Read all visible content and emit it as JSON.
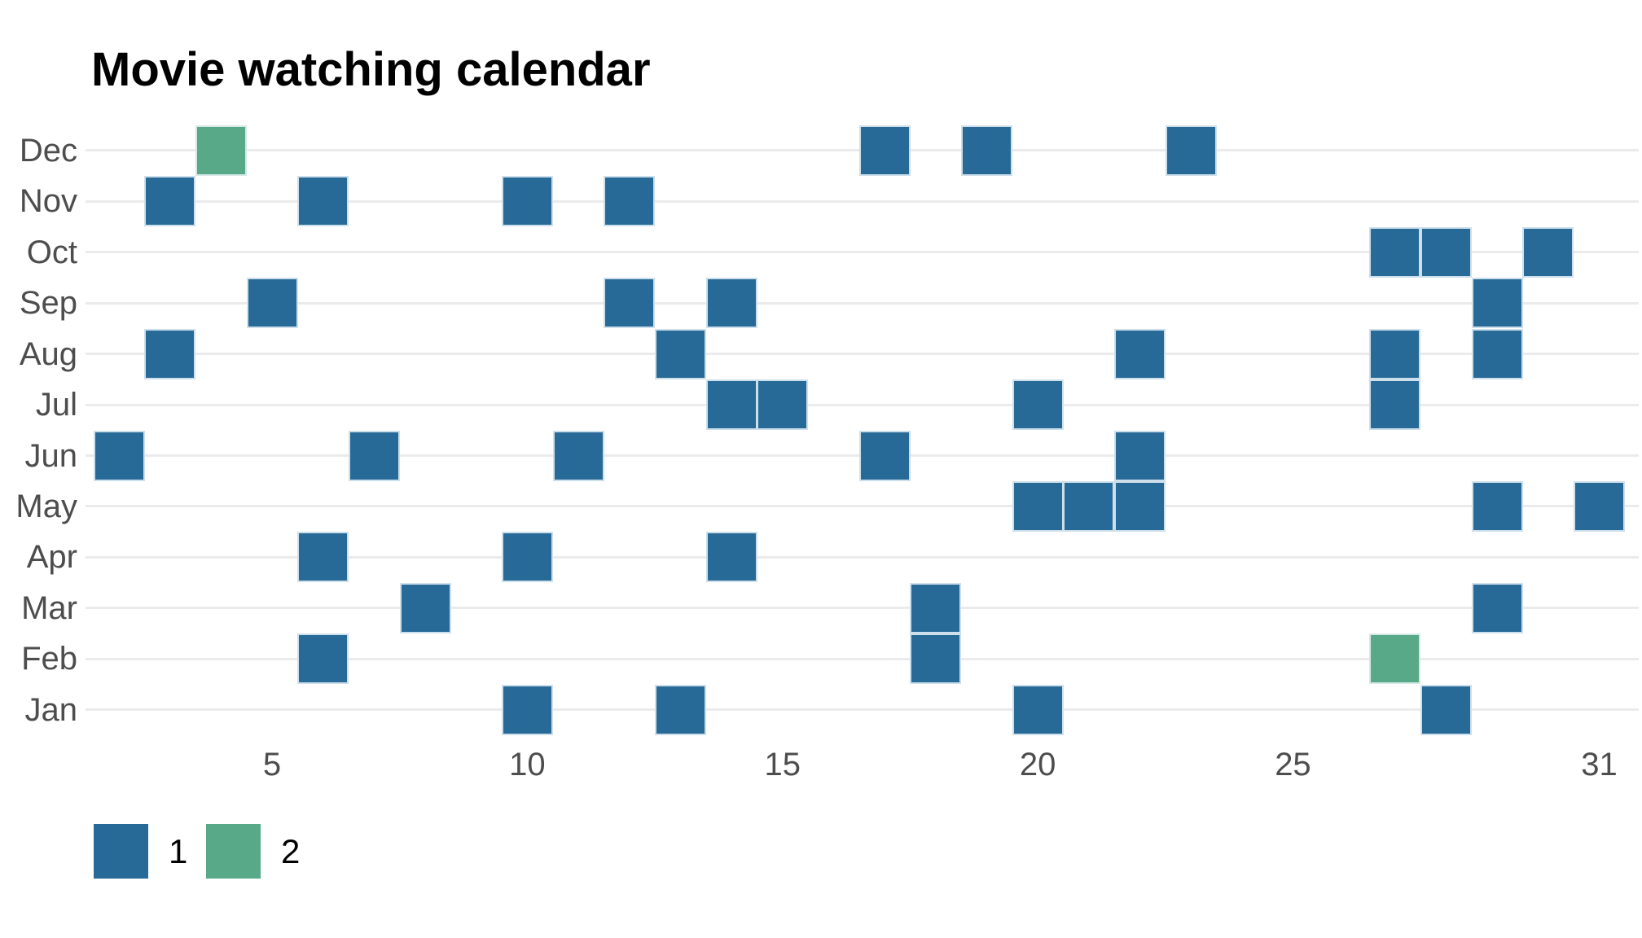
{
  "chart_data": {
    "type": "heatmap",
    "title": "Movie watching calendar",
    "xlabel": "",
    "ylabel": "",
    "x_axis": {
      "ticks": [
        5,
        10,
        15,
        20,
        25,
        31
      ],
      "range": [
        1,
        31
      ],
      "grid": false
    },
    "y_axis": {
      "categories_top_to_bottom": [
        "Dec",
        "Nov",
        "Oct",
        "Sep",
        "Aug",
        "Jul",
        "Jun",
        "May",
        "Apr",
        "Mar",
        "Feb",
        "Jan"
      ],
      "grid": true
    },
    "legend": [
      {
        "label": "1",
        "color": "#276a97"
      },
      {
        "label": "2",
        "color": "#58a987"
      }
    ],
    "legend_position": "bottom-left",
    "cells": [
      {
        "month": "Dec",
        "day": 4,
        "value": 2
      },
      {
        "month": "Dec",
        "day": 17,
        "value": 1
      },
      {
        "month": "Dec",
        "day": 19,
        "value": 1
      },
      {
        "month": "Dec",
        "day": 23,
        "value": 1
      },
      {
        "month": "Nov",
        "day": 3,
        "value": 1
      },
      {
        "month": "Nov",
        "day": 6,
        "value": 1
      },
      {
        "month": "Nov",
        "day": 10,
        "value": 1
      },
      {
        "month": "Nov",
        "day": 12,
        "value": 1
      },
      {
        "month": "Oct",
        "day": 27,
        "value": 1
      },
      {
        "month": "Oct",
        "day": 28,
        "value": 1
      },
      {
        "month": "Oct",
        "day": 30,
        "value": 1
      },
      {
        "month": "Sep",
        "day": 5,
        "value": 1
      },
      {
        "month": "Sep",
        "day": 12,
        "value": 1
      },
      {
        "month": "Sep",
        "day": 14,
        "value": 1
      },
      {
        "month": "Sep",
        "day": 29,
        "value": 1
      },
      {
        "month": "Aug",
        "day": 3,
        "value": 1
      },
      {
        "month": "Aug",
        "day": 13,
        "value": 1
      },
      {
        "month": "Aug",
        "day": 22,
        "value": 1
      },
      {
        "month": "Aug",
        "day": 27,
        "value": 1
      },
      {
        "month": "Aug",
        "day": 29,
        "value": 1
      },
      {
        "month": "Jul",
        "day": 14,
        "value": 1
      },
      {
        "month": "Jul",
        "day": 15,
        "value": 1
      },
      {
        "month": "Jul",
        "day": 20,
        "value": 1
      },
      {
        "month": "Jul",
        "day": 27,
        "value": 1
      },
      {
        "month": "Jun",
        "day": 2,
        "value": 1
      },
      {
        "month": "Jun",
        "day": 7,
        "value": 1
      },
      {
        "month": "Jun",
        "day": 11,
        "value": 1
      },
      {
        "month": "Jun",
        "day": 17,
        "value": 1
      },
      {
        "month": "Jun",
        "day": 22,
        "value": 1
      },
      {
        "month": "May",
        "day": 20,
        "value": 1
      },
      {
        "month": "May",
        "day": 21,
        "value": 1
      },
      {
        "month": "May",
        "day": 22,
        "value": 1
      },
      {
        "month": "May",
        "day": 29,
        "value": 1
      },
      {
        "month": "May",
        "day": 31,
        "value": 1
      },
      {
        "month": "Apr",
        "day": 6,
        "value": 1
      },
      {
        "month": "Apr",
        "day": 10,
        "value": 1
      },
      {
        "month": "Apr",
        "day": 14,
        "value": 1
      },
      {
        "month": "Mar",
        "day": 8,
        "value": 1
      },
      {
        "month": "Mar",
        "day": 18,
        "value": 1
      },
      {
        "month": "Mar",
        "day": 29,
        "value": 1
      },
      {
        "month": "Feb",
        "day": 6,
        "value": 1
      },
      {
        "month": "Feb",
        "day": 18,
        "value": 1
      },
      {
        "month": "Feb",
        "day": 27,
        "value": 2
      },
      {
        "month": "Jan",
        "day": 10,
        "value": 1
      },
      {
        "month": "Jan",
        "day": 13,
        "value": 1
      },
      {
        "month": "Jan",
        "day": 20,
        "value": 1
      },
      {
        "month": "Jan",
        "day": 28,
        "value": 1
      }
    ]
  }
}
